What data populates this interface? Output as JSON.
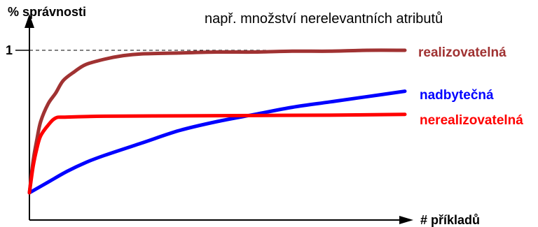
{
  "chart_data": {
    "type": "line",
    "title": "",
    "annotation": "např. množství nerelevantních atributů",
    "ylabel": "% správnosti",
    "xlabel": "# příkladů",
    "ytick_label": "1",
    "ylim": [
      0,
      1.07
    ],
    "xlim": [
      0,
      100
    ],
    "grid": false,
    "legend": "inline labels at right end of each series",
    "series": [
      {
        "name": "realizovatelná",
        "color": "#a03232",
        "x": [
          0,
          1,
          2,
          3,
          5,
          7,
          9,
          12,
          15,
          20,
          25,
          30,
          40,
          50,
          60,
          70,
          80,
          90,
          100
        ],
        "y": [
          0.2,
          0.38,
          0.5,
          0.6,
          0.7,
          0.76,
          0.83,
          0.88,
          0.92,
          0.95,
          0.97,
          0.98,
          0.985,
          0.99,
          0.99,
          0.995,
          0.995,
          1.0,
          1.0
        ]
      },
      {
        "name": "nadbytečná",
        "color": "#0000ff",
        "x": [
          0,
          5,
          10,
          15,
          20,
          30,
          40,
          50,
          60,
          70,
          80,
          90,
          100
        ],
        "y": [
          0.2,
          0.26,
          0.32,
          0.37,
          0.41,
          0.48,
          0.55,
          0.6,
          0.64,
          0.68,
          0.71,
          0.74,
          0.77
        ]
      },
      {
        "name": "nerealizovatelná",
        "color": "#ff0000",
        "x": [
          0,
          1,
          2,
          3,
          5,
          7,
          10,
          20,
          40,
          60,
          80,
          100
        ],
        "y": [
          0.2,
          0.35,
          0.45,
          0.52,
          0.58,
          0.62,
          0.625,
          0.63,
          0.632,
          0.634,
          0.636,
          0.64
        ]
      }
    ]
  }
}
